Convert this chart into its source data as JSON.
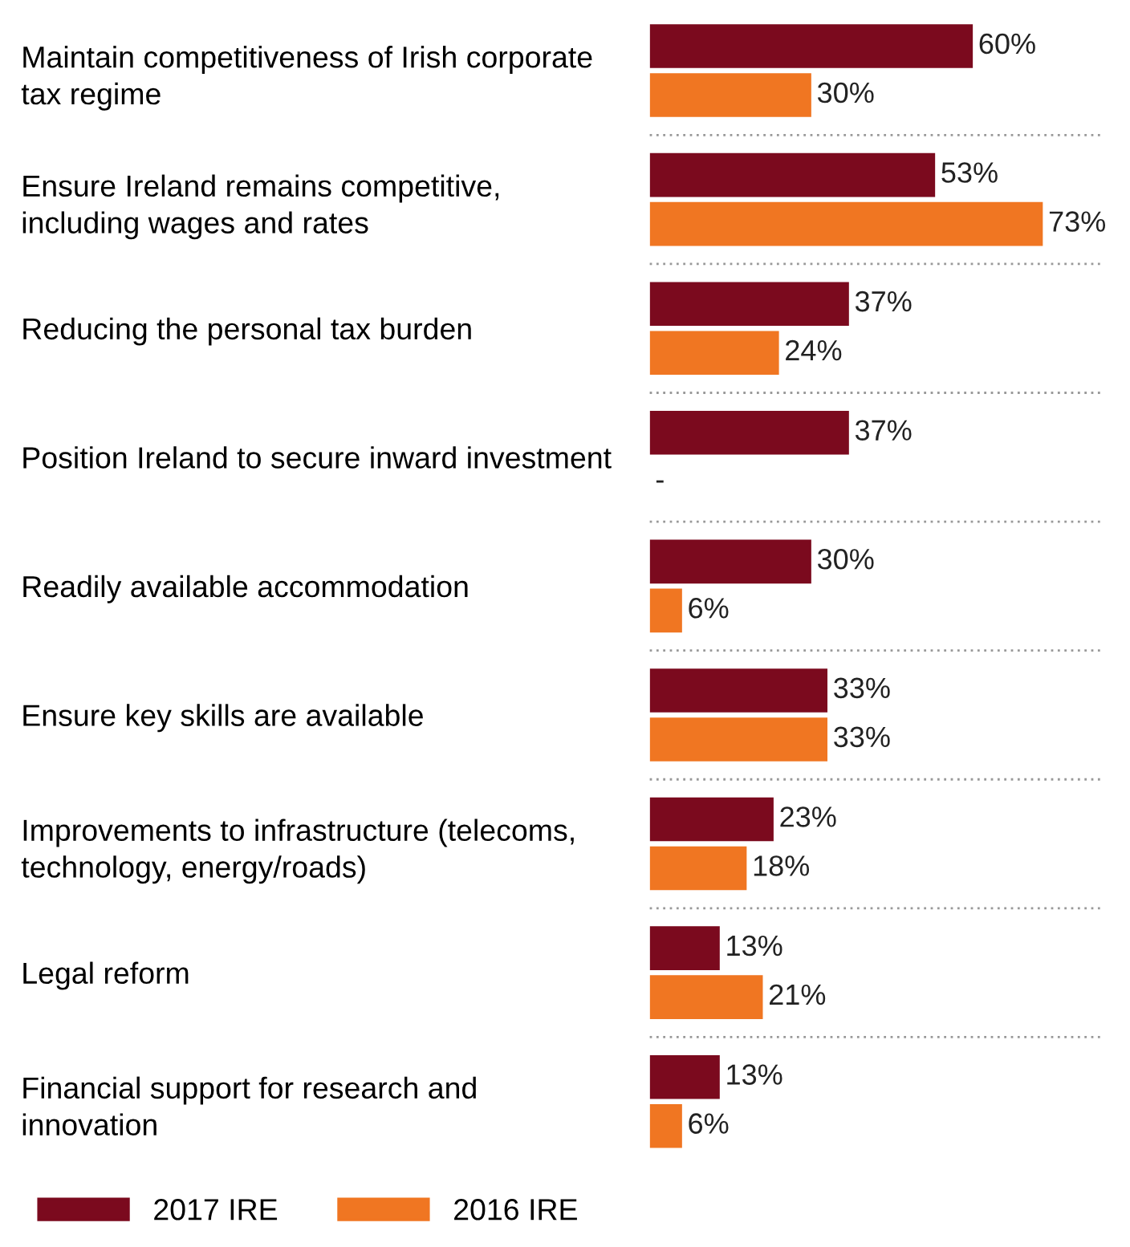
{
  "chart_data": {
    "type": "bar",
    "orientation": "horizontal",
    "categories": [
      "Maintain competitiveness of Irish corporate tax regime",
      "Ensure Ireland remains competitive, including wages and rates",
      "Reducing the personal tax burden",
      "Position Ireland to secure inward investment",
      "Readily available accommodation",
      "Ensure key skills are available",
      "Improvements to infrastructure (telecoms, technology, energy/roads)",
      "Legal reform",
      "Financial support for research and innovation"
    ],
    "series": [
      {
        "name": "2017 IRE",
        "color": "#7b0a1e",
        "values": [
          60,
          53,
          37,
          37,
          30,
          33,
          23,
          13,
          13
        ],
        "value_labels": [
          "60%",
          "53%",
          "37%",
          "37%",
          "30%",
          "33%",
          "23%",
          "13%",
          "13%"
        ]
      },
      {
        "name": "2016 IRE",
        "color": "#f07622",
        "values": [
          30,
          73,
          24,
          null,
          6,
          33,
          18,
          21,
          6
        ],
        "value_labels": [
          "30%",
          "73%",
          "24%",
          "-",
          "6%",
          "33%",
          "18%",
          "21%",
          "6%"
        ]
      }
    ],
    "tick_labels": "y",
    "grid": false,
    "legend": "bottom left"
  }
}
